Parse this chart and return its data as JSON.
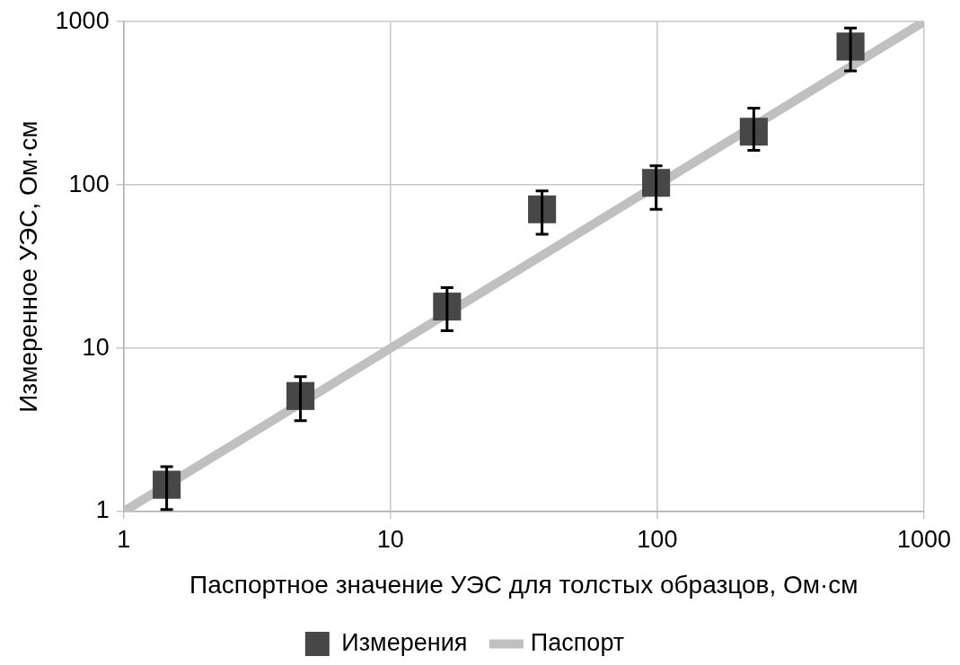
{
  "chart_data": {
    "type": "scatter",
    "xlabel": "Паспортное значение УЭС для толстых образцов, Ом·см",
    "ylabel": "Измеренное УЭС, Ом·см",
    "log": "xy",
    "xlim": [
      1,
      1000
    ],
    "ylim": [
      1,
      1000
    ],
    "xticks": [
      1,
      10,
      100,
      1000
    ],
    "yticks": [
      1,
      10,
      100,
      1000
    ],
    "grid": true,
    "legend": "bottom",
    "series": [
      {
        "name": "Измерения",
        "type": "scatter",
        "marker": "square",
        "color": "#474747",
        "x": [
          1.45,
          4.6,
          16.3,
          37,
          99,
          230,
          530
        ],
        "values": [
          1.46,
          5.1,
          18,
          71,
          103,
          212,
          705
        ],
        "errors": [
          [
            1.03,
            1.88
          ],
          [
            3.6,
            6.7
          ],
          [
            12.8,
            23.5
          ],
          [
            50,
            92
          ],
          [
            71,
            131
          ],
          [
            163,
            296
          ],
          [
            500,
            915
          ]
        ]
      },
      {
        "name": "Паспорт",
        "type": "line",
        "marker": "none",
        "line_style": "solid",
        "color": "#c0c0c0",
        "x": [
          1,
          1000
        ],
        "values": [
          1,
          1000
        ]
      }
    ]
  }
}
